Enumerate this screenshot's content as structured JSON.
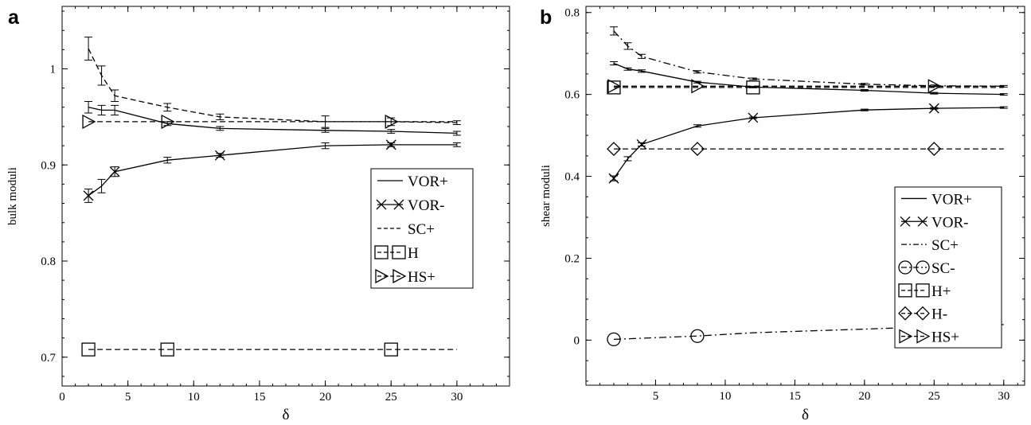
{
  "chart_data": [
    {
      "type": "line",
      "panel_label": "a",
      "xlabel": "δ",
      "ylabel": "bulk moduli",
      "xlim": [
        0,
        34
      ],
      "ylim": [
        0.67,
        1.065
      ],
      "x_ticks": [
        0,
        5,
        10,
        15,
        20,
        25,
        30
      ],
      "y_ticks": [
        0.7,
        0.8,
        0.9,
        1
      ],
      "x_tick_labels": [
        "0",
        "5",
        "10",
        "15",
        "20",
        "25",
        "30"
      ],
      "y_tick_labels": [
        "0.7",
        "0.8",
        "0.9",
        "1"
      ],
      "legend_position": "center-right",
      "series": [
        {
          "name": "VOR+",
          "style": "solid",
          "marker": "none",
          "x": [
            2,
            3,
            4,
            8,
            12,
            20,
            25,
            30
          ],
          "y": [
            0.96,
            0.957,
            0.957,
            0.943,
            0.938,
            0.936,
            0.935,
            0.933
          ],
          "err": [
            0.006,
            0.005,
            0.005,
            0.002,
            0.002,
            0.002,
            0.002,
            0.002
          ]
        },
        {
          "name": "VOR-",
          "style": "solid",
          "marker": "x",
          "x": [
            2,
            3,
            4,
            8,
            12,
            20,
            25,
            30
          ],
          "y": [
            0.868,
            0.878,
            0.893,
            0.905,
            0.91,
            0.92,
            0.921,
            0.921
          ],
          "err": [
            0.007,
            0.007,
            0.005,
            0.003,
            0.002,
            0.003,
            0.002,
            0.002
          ],
          "marker_x": [
            2,
            4,
            12,
            25
          ]
        },
        {
          "name": "SC+",
          "style": "dashed",
          "marker": "none",
          "x": [
            2,
            3,
            4,
            8,
            12,
            20,
            25,
            30
          ],
          "y": [
            1.021,
            0.993,
            0.972,
            0.96,
            0.95,
            0.945,
            0.945,
            0.944
          ],
          "err": [
            0.012,
            0.01,
            0.006,
            0.004,
            0.003,
            0.006,
            0.004,
            0.002
          ]
        },
        {
          "name": "H",
          "style": "dashed",
          "marker": "square",
          "x": [
            2,
            8,
            25,
            30
          ],
          "y": [
            0.708,
            0.708,
            0.708,
            0.708
          ],
          "marker_x": [
            2,
            8,
            25
          ]
        },
        {
          "name": "HS+",
          "style": "dashed",
          "marker": "triangle-right",
          "x": [
            2,
            8,
            25,
            30
          ],
          "y": [
            0.945,
            0.945,
            0.945,
            0.945
          ],
          "marker_x": [
            2,
            8,
            25
          ]
        }
      ]
    },
    {
      "type": "line",
      "panel_label": "b",
      "xlabel": "δ",
      "ylabel": "shear moduli",
      "xlim": [
        0,
        31.5
      ],
      "ylim": [
        -0.11,
        0.815
      ],
      "x_ticks": [
        5,
        10,
        15,
        20,
        25,
        30
      ],
      "y_ticks": [
        0,
        0.2,
        0.4,
        0.6,
        0.8
      ],
      "x_tick_labels": [
        "5",
        "10",
        "15",
        "20",
        "25",
        "30"
      ],
      "y_tick_labels": [
        "0",
        "0.2",
        "0.4",
        "0.6",
        "0.8"
      ],
      "legend_position": "bottom-right",
      "series": [
        {
          "name": "VOR+",
          "style": "solid",
          "marker": "none",
          "x": [
            2,
            3,
            4,
            8,
            12,
            20,
            25,
            30
          ],
          "y": [
            0.676,
            0.662,
            0.657,
            0.63,
            0.618,
            0.61,
            0.603,
            0.6
          ],
          "err": [
            0.004,
            0.003,
            0.003,
            0.002,
            0.002,
            0.002,
            0.002,
            0.002
          ]
        },
        {
          "name": "VOR-",
          "style": "solid",
          "marker": "x",
          "x": [
            2,
            3,
            4,
            8,
            12,
            20,
            25,
            30
          ],
          "y": [
            0.395,
            0.443,
            0.478,
            0.523,
            0.543,
            0.562,
            0.566,
            0.568
          ],
          "err": [
            0.006,
            0.005,
            0.004,
            0.003,
            0.002,
            0.002,
            0.002,
            0.002
          ],
          "marker_x": [
            2,
            4,
            12,
            25
          ]
        },
        {
          "name": "SC+",
          "style": "dashdot",
          "marker": "none",
          "x": [
            2,
            3,
            4,
            8,
            12,
            20,
            25,
            30
          ],
          "y": [
            0.755,
            0.718,
            0.693,
            0.655,
            0.638,
            0.625,
            0.621,
            0.62
          ],
          "err": [
            0.01,
            0.008,
            0.005,
            0.003,
            0.002,
            0.002,
            0.002,
            0.002
          ]
        },
        {
          "name": "SC-",
          "style": "dashdot",
          "marker": "circle",
          "x": [
            2,
            8,
            12,
            20,
            25,
            30
          ],
          "y": [
            0.002,
            0.01,
            0.018,
            0.027,
            0.033,
            0.038
          ],
          "marker_x": [
            2,
            8
          ]
        },
        {
          "name": "H+",
          "style": "dashed",
          "marker": "square",
          "x": [
            2,
            8,
            12,
            30
          ],
          "y": [
            0.617,
            0.617,
            0.617,
            0.617
          ],
          "marker_x": [
            2,
            12
          ]
        },
        {
          "name": "H-",
          "style": "dashed",
          "marker": "diamond",
          "x": [
            2,
            8,
            25,
            30
          ],
          "y": [
            0.467,
            0.467,
            0.467,
            0.467
          ],
          "marker_x": [
            2,
            8,
            25
          ]
        },
        {
          "name": "HS+",
          "style": "dashed",
          "marker": "triangle-right",
          "x": [
            2,
            8,
            25,
            30
          ],
          "y": [
            0.62,
            0.62,
            0.62,
            0.62
          ],
          "marker_x": [
            2,
            8,
            25
          ]
        }
      ]
    }
  ]
}
